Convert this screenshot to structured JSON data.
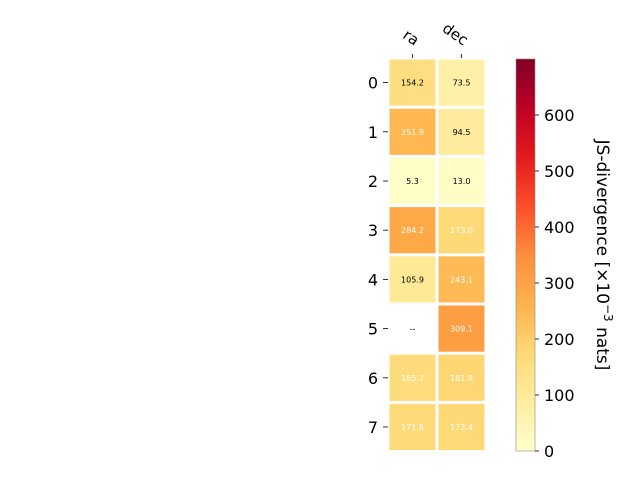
{
  "chart_data": {
    "type": "heatmap",
    "columns": [
      "ra",
      "dec"
    ],
    "rows": [
      "0",
      "1",
      "2",
      "3",
      "4",
      "5",
      "6",
      "7"
    ],
    "values": [
      [
        154.2,
        73.5
      ],
      [
        251.9,
        94.5
      ],
      [
        5.3,
        13.0
      ],
      [
        284.2,
        173.0
      ],
      [
        105.9,
        243.1
      ],
      [
        null,
        309.1
      ],
      [
        165.2,
        181.8
      ],
      [
        171.8,
        173.4
      ]
    ],
    "cell_labels": [
      [
        "154.2",
        "73.5"
      ],
      [
        "251.9",
        "94.5"
      ],
      [
        "5.3",
        "13.0"
      ],
      [
        "284.2",
        "173.0"
      ],
      [
        "105.9",
        "243.1"
      ],
      [
        "--",
        "309.1"
      ],
      [
        "165.2",
        "181.8"
      ],
      [
        "171.8",
        "173.4"
      ]
    ],
    "colorbar": {
      "label_main": "JS-divergence [×10",
      "label_exp": "−3",
      "label_unit": " nats]",
      "range": [
        0,
        700
      ],
      "ticks": [
        "0",
        "100",
        "200",
        "300",
        "400",
        "500",
        "600"
      ],
      "colormap": "YlOrRd"
    },
    "colors": {
      "text_light": "#ffffff",
      "text_dark": "#000000",
      "cell_border": "#ffffff"
    }
  }
}
